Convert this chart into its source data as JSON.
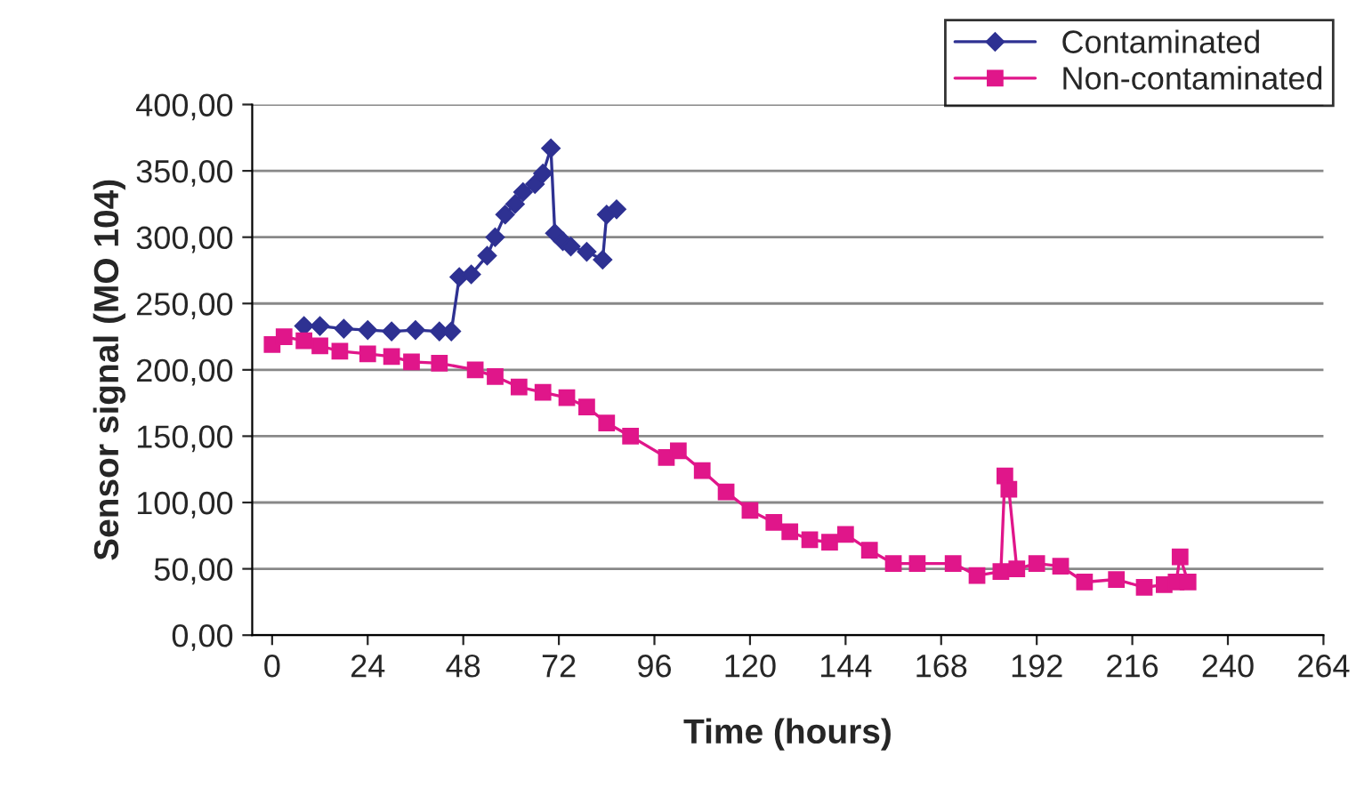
{
  "chart_data": {
    "type": "line",
    "xlabel": "Time (hours)",
    "ylabel": "Sensor signal (MO 104)",
    "xlim": [
      -5,
      264
    ],
    "xticks": [
      0,
      24,
      48,
      72,
      96,
      120,
      144,
      168,
      192,
      216,
      240,
      264
    ],
    "ylim": [
      0,
      400
    ],
    "yticks": [
      {
        "value": 0,
        "label": "0,00"
      },
      {
        "value": 50,
        "label": "50,00"
      },
      {
        "value": 100,
        "label": "100,00"
      },
      {
        "value": 150,
        "label": "150,00"
      },
      {
        "value": 200,
        "label": "200,00"
      },
      {
        "value": 250,
        "label": "250,00"
      },
      {
        "value": 300,
        "label": "300,00"
      },
      {
        "value": 350,
        "label": "350,00"
      },
      {
        "value": 400,
        "label": "400,00"
      }
    ],
    "grid": "y",
    "legend": "top right",
    "series": [
      {
        "name": "Contaminated",
        "color": "#2e3192",
        "marker": "diamond",
        "x": [
          8,
          12,
          18,
          24,
          30,
          36,
          42,
          45,
          47,
          50,
          54,
          56,
          58.5,
          61,
          63,
          66,
          68,
          70,
          71,
          73,
          75,
          79,
          83,
          84,
          86.5
        ],
        "values": [
          233,
          233,
          231,
          230,
          229,
          230,
          229,
          229,
          270,
          272,
          286,
          300,
          317,
          325,
          334,
          340,
          348,
          367,
          303,
          297,
          293,
          289,
          283,
          317,
          321
        ]
      },
      {
        "name": "Non-contaminated",
        "color": "#e0168a",
        "marker": "square",
        "x": [
          0,
          3,
          8,
          12,
          17,
          24,
          30,
          35,
          42,
          51,
          56,
          62,
          68,
          74,
          79,
          84,
          90,
          99,
          102,
          108,
          114,
          120,
          126,
          130,
          135,
          140,
          144,
          150,
          156,
          162,
          171,
          177,
          183,
          184,
          185,
          187,
          192,
          198,
          204,
          212,
          219,
          224,
          227,
          228,
          230
        ],
        "values": [
          219,
          225,
          222,
          218,
          214,
          212,
          210,
          206,
          205,
          200,
          195,
          187,
          183,
          179,
          172,
          160,
          150,
          134,
          139,
          124,
          108,
          94,
          85,
          78,
          72,
          70,
          76,
          64,
          54,
          54,
          54,
          45,
          48,
          120,
          110,
          50,
          54,
          52,
          40,
          42,
          36,
          38,
          40,
          59,
          40
        ]
      }
    ]
  }
}
